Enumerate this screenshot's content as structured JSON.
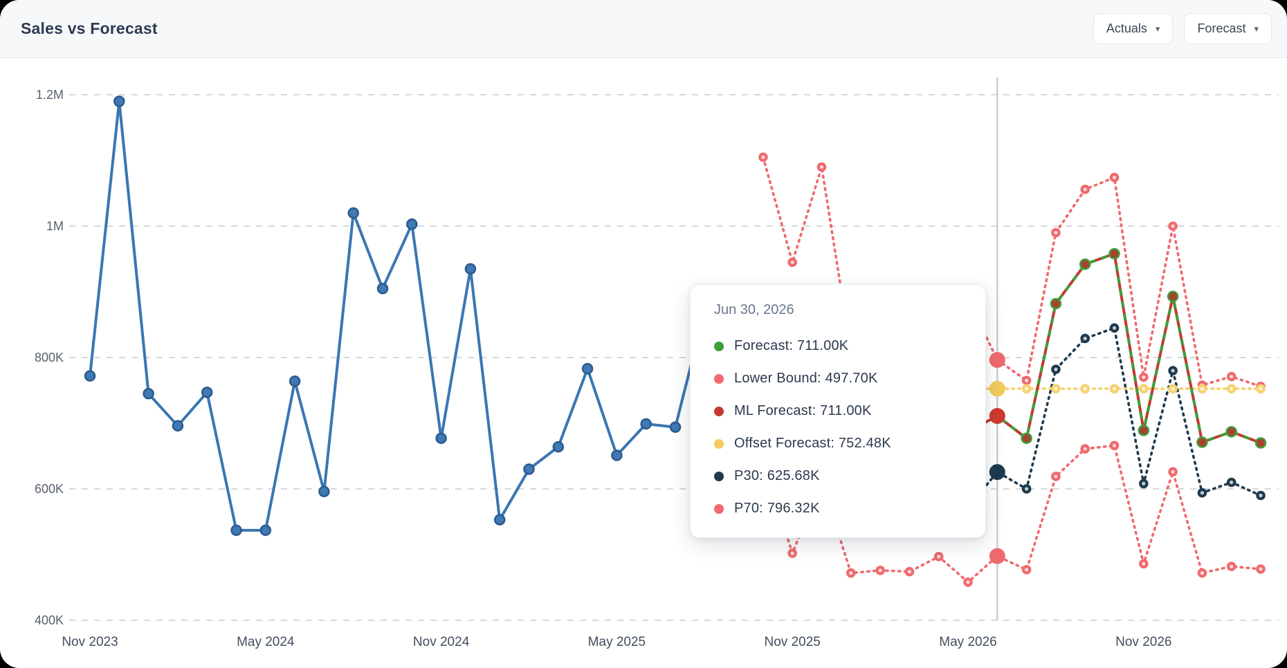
{
  "header": {
    "title": "Sales vs Forecast",
    "actuals_button": "Actuals",
    "forecast_button": "Forecast",
    "chevron": "▾"
  },
  "tooltip": {
    "date": "Jun 30, 2026",
    "rows": [
      {
        "label": "Forecast",
        "value": "711.00K",
        "color": "#3f9e3b"
      },
      {
        "label": "Lower Bound",
        "value": "497.70K",
        "color": "#ef6a6e"
      },
      {
        "label": "ML Forecast",
        "value": "711.00K",
        "color": "#c23a32"
      },
      {
        "label": "Offset Forecast",
        "value": "752.48K",
        "color": "#f3cb5e"
      },
      {
        "label": "P30",
        "value": "625.68K",
        "color": "#1e3a4e"
      },
      {
        "label": "P70",
        "value": "796.32K",
        "color": "#ef6a6e"
      }
    ]
  },
  "chart_data": {
    "type": "line",
    "title": "Sales vs Forecast",
    "unit": "K",
    "grid": "horizontal-dashed",
    "ylim": [
      400,
      1228
    ],
    "y_ticks": [
      {
        "label": "400K",
        "value": 400
      },
      {
        "label": "600K",
        "value": 600
      },
      {
        "label": "800K",
        "value": 800
      },
      {
        "label": "1M",
        "value": 1000
      },
      {
        "label": "1.2M",
        "value": 1200
      }
    ],
    "x_ticks": [
      {
        "label": "Nov 2023",
        "index": 0
      },
      {
        "label": "May 2024",
        "index": 6
      },
      {
        "label": "Nov 2024",
        "index": 12
      },
      {
        "label": "May 2025",
        "index": 18
      },
      {
        "label": "Nov 2025",
        "index": 24
      },
      {
        "label": "May 2026",
        "index": 30
      },
      {
        "label": "Nov 2026",
        "index": 36
      }
    ],
    "hover_index": 31,
    "hover_date": "Jun 30, 2026",
    "series": [
      {
        "name": "Actuals",
        "color": "#3b76b1",
        "marker_fill": "#4079b3",
        "marker_stroke": "#2b5b8e",
        "style": "solid",
        "marker": "filled",
        "start_index": 0,
        "values": [
          772,
          1190,
          745,
          696,
          747,
          537,
          537,
          764,
          596,
          1020,
          905,
          1003,
          677,
          935,
          553,
          630,
          664,
          783,
          651,
          699,
          694,
          870,
          880
        ]
      },
      {
        "name": "P70",
        "color": "#ef6a6e",
        "style": "dotted",
        "marker": "donut",
        "start_index": 23,
        "hover_value": 796.32,
        "hover_color": "#ef6a6e",
        "values": [
          1105,
          945,
          1090,
          810,
          790,
          820,
          830,
          890,
          796.32,
          765,
          990,
          1056,
          1074,
          770,
          1000,
          758,
          771,
          756
        ]
      },
      {
        "name": "Lower Bound",
        "color": "#ef6a6e",
        "style": "dotted",
        "marker": "donut",
        "start_index": 23,
        "hover_value": 497.7,
        "hover_color": "#ef6a6e",
        "values": [
          640,
          502,
          612,
          472,
          476,
          474,
          497,
          458,
          497.7,
          477,
          619,
          661,
          666,
          486,
          626,
          472,
          482,
          478
        ]
      },
      {
        "name": "P30",
        "color": "#1e3a4e",
        "style": "dotted",
        "marker": "donut",
        "start_index": 23,
        "hover_value": 625.68,
        "hover_color": "#1e3a4e",
        "values": [
          615,
          605,
          618,
          589,
          598,
          591,
          601,
          572,
          625.68,
          600,
          782,
          829,
          845,
          608,
          780,
          594,
          610,
          590
        ]
      },
      {
        "name": "Offset Forecast",
        "color": "#f6d170",
        "style": "dotted",
        "marker": "donut",
        "start_index": 23,
        "hover_value": 752.48,
        "hover_color": "#f3cb5e",
        "values": [
          752.48,
          752.48,
          752.48,
          752.48,
          752.48,
          752.48,
          752.48,
          752.48,
          752.48,
          752.48,
          752.48,
          752.48,
          752.48,
          752.48,
          752.48,
          752.48,
          752.48,
          752.48
        ]
      },
      {
        "name": "ML Forecast",
        "color": "#c23a32",
        "overlay_color": "#3f9e3b",
        "style": "solid-striped",
        "marker": "filled",
        "marker_fill": "#a8432f",
        "marker_stroke": "#3f9e3b",
        "start_index": 23,
        "hover_value": 711,
        "hover_color": "#cf3a31",
        "values": [
          700,
          692,
          706,
          696,
          701,
          693,
          704,
          687,
          711,
          677,
          882,
          942,
          958,
          689,
          893,
          671,
          687,
          670
        ]
      }
    ],
    "colors": {
      "grid": "#d5d8dd",
      "crosshair": "#c9ced5",
      "y_label": "#57606e",
      "x_label": "#424e60"
    }
  }
}
